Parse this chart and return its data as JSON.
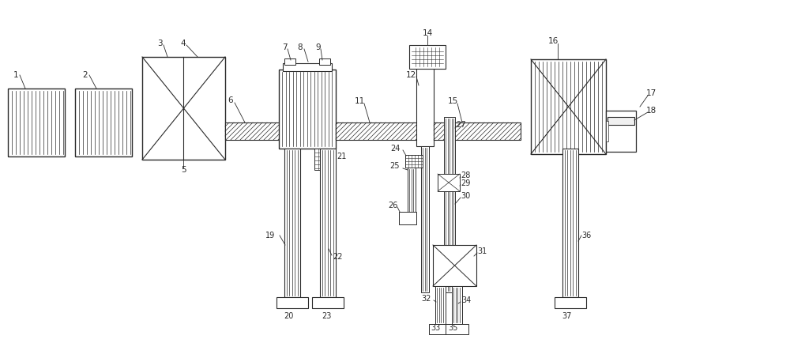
{
  "bg_color": "#ffffff",
  "line_color": "#2a2a2a",
  "fig_width": 10.0,
  "fig_height": 4.53,
  "dpi": 100
}
